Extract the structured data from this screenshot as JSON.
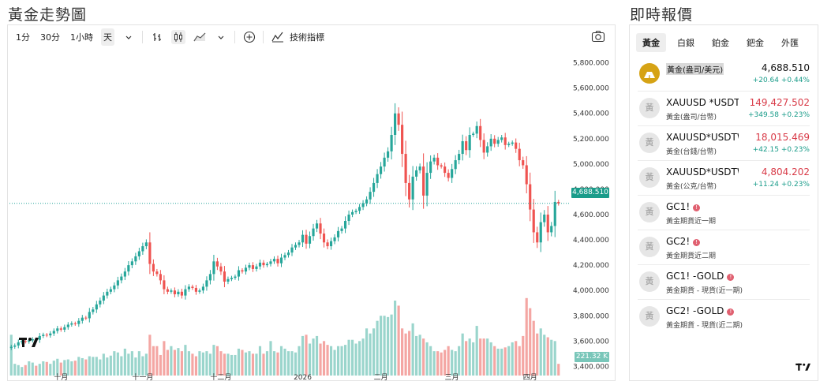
{
  "left_title": "黃金走勢圖",
  "right_title": "即時報價",
  "toolbar": {
    "interval_1m": "1分",
    "interval_30m": "30分",
    "interval_1h": "1小時",
    "interval_day": "天",
    "indicators_label": "技術指標"
  },
  "chart_data": {
    "type": "candlestick",
    "title": "",
    "xlabel": "",
    "ylabel": "",
    "ylim": [
      3340,
      5860
    ],
    "price_ticks": [
      "5,800.000",
      "5,600.000",
      "5,400.000",
      "5,200.000",
      "5,000.000",
      "4,800.000",
      "4,600.000",
      "4,400.000",
      "4,200.000",
      "4,000.000",
      "3,800.000",
      "3,600.000",
      "3,400.000"
    ],
    "price_tick_values": [
      5800,
      5600,
      5400,
      5200,
      5000,
      4800,
      4600,
      4400,
      4200,
      4000,
      3800,
      3600,
      3400
    ],
    "time_labels": [
      {
        "label": "十月",
        "index": 14
      },
      {
        "label": "十一月",
        "index": 37
      },
      {
        "label": "十二月",
        "index": 59
      },
      {
        "label": "2026",
        "index": 82
      },
      {
        "label": "二月",
        "index": 104
      },
      {
        "label": "三月",
        "index": 124
      },
      {
        "label": "四月",
        "index": 146
      }
    ],
    "last_price": 4688.51,
    "last_price_label": "4,688.510",
    "volume_label": "221.32 K",
    "close": [
      3555,
      3565,
      3590,
      3600,
      3595,
      3605,
      3615,
      3610,
      3640,
      3650,
      3645,
      3660,
      3680,
      3700,
      3690,
      3710,
      3730,
      3740,
      3735,
      3760,
      3785,
      3780,
      3830,
      3850,
      3890,
      3920,
      3960,
      3990,
      4010,
      4040,
      4080,
      4110,
      4150,
      4200,
      4230,
      4270,
      4310,
      4350,
      4380,
      4210,
      4150,
      4130,
      4080,
      4010,
      3990,
      4000,
      3970,
      3990,
      3960,
      4010,
      4030,
      4020,
      3990,
      4000,
      4030,
      4080,
      4130,
      4230,
      4190,
      4150,
      4070,
      4090,
      4100,
      4110,
      4160,
      4150,
      4180,
      4200,
      4170,
      4190,
      4220,
      4200,
      4210,
      4230,
      4250,
      4215,
      4260,
      4280,
      4300,
      4340,
      4360,
      4380,
      4440,
      4370,
      4430,
      4490,
      4530,
      4450,
      4380,
      4350,
      4390,
      4420,
      4470,
      4490,
      4550,
      4600,
      4620,
      4630,
      4660,
      4690,
      4720,
      4780,
      4850,
      4920,
      4980,
      5050,
      5100,
      5230,
      5400,
      5310,
      5080,
      4850,
      4720,
      4900,
      4950,
      4980,
      4750,
      4930,
      5020,
      5050,
      4990,
      4980,
      4930,
      4890,
      4960,
      5030,
      5080,
      5180,
      5110,
      5230,
      5240,
      5300,
      5190,
      5090,
      5140,
      5200,
      5160,
      5190,
      5210,
      5150,
      5160,
      5170,
      5120,
      5030,
      4990,
      4840,
      4640,
      4460,
      4380,
      4540,
      4600,
      4460,
      4510,
      4700,
      4688
    ],
    "volume": [
      3650,
      3420,
      3410,
      3395,
      3410,
      3440,
      3430,
      3405,
      3420,
      3440,
      3435,
      3420,
      3445,
      3460,
      3430,
      3450,
      3455,
      3440,
      3445,
      3475,
      3465,
      3455,
      3480,
      3475,
      3475,
      3455,
      3500,
      3470,
      3485,
      3520,
      3510,
      3480,
      3540,
      3500,
      3520,
      3470,
      3520,
      3480,
      3500,
      3650,
      3560,
      3560,
      3490,
      3600,
      3530,
      3560,
      3530,
      3545,
      3520,
      3570,
      3520,
      3500,
      3480,
      3520,
      3510,
      3520,
      3500,
      3570,
      3560,
      3520,
      3500,
      3500,
      3490,
      3490,
      3540,
      3530,
      3510,
      3520,
      3500,
      3500,
      3560,
      3500,
      3520,
      3600,
      3520,
      3510,
      3560,
      3540,
      3520,
      3520,
      3510,
      3560,
      3640,
      3650,
      3580,
      3620,
      3640,
      3580,
      3600,
      3570,
      3560,
      3530,
      3560,
      3560,
      3570,
      3610,
      3610,
      3580,
      3600,
      3620,
      3700,
      3660,
      3700,
      3760,
      3800,
      3800,
      3790,
      3810,
      3920,
      3880,
      3700,
      3660,
      3680,
      3740,
      3640,
      3650,
      3620,
      3590,
      3560,
      3520,
      3520,
      3510,
      3530,
      3560,
      3530,
      3520,
      3560,
      3660,
      3600,
      3620,
      3590,
      3720,
      3620,
      3620,
      3620,
      3590,
      3560,
      3540,
      3540,
      3550,
      3560,
      3590,
      3600,
      3560,
      3640,
      3940,
      3860,
      3760,
      3660,
      3700,
      3650,
      3630,
      3610,
      3600,
      3420
    ]
  },
  "quotes": {
    "tabs": [
      "黃金",
      "白銀",
      "鉑金",
      "鈀金",
      "外匯"
    ],
    "items": [
      {
        "avatar": "",
        "symbol": "黃金(盎司/美元)",
        "desc": "",
        "price": "4,688.510",
        "change": "+20.64  +0.44%",
        "gold": true,
        "red": false,
        "dot": false
      },
      {
        "avatar": "黃",
        "symbol": "XAUUSD *USDTWD",
        "desc": "黃金(盎司/台幣)",
        "price": "149,427.502",
        "change": "+349.58  +0.23%",
        "gold": false,
        "red": true,
        "dot": false
      },
      {
        "avatar": "黃",
        "symbol": "XAUUSD*USDTWD/",
        "desc": "黃金(台錢/台幣)",
        "price": "18,015.469",
        "change": "+42.15  +0.23%",
        "gold": false,
        "red": true,
        "dot": false
      },
      {
        "avatar": "黃",
        "symbol": "XAUUSD*USDTWD/",
        "desc": "黃金(公克/台幣)",
        "price": "4,804.202",
        "change": "+11.24  +0.23%",
        "gold": false,
        "red": true,
        "dot": false
      },
      {
        "avatar": "黃",
        "symbol": "GC1!",
        "desc": "黃金期貨近一期",
        "price": "",
        "change": "",
        "gold": false,
        "red": false,
        "dot": true
      },
      {
        "avatar": "黃",
        "symbol": "GC2!",
        "desc": "黃金期貨近二期",
        "price": "",
        "change": "",
        "gold": false,
        "red": false,
        "dot": true
      },
      {
        "avatar": "黃",
        "symbol": "GC1! -GOLD",
        "desc": "黃金期貨 - 現貨(近一期)",
        "price": "",
        "change": "",
        "gold": false,
        "red": false,
        "dot": true
      },
      {
        "avatar": "黃",
        "symbol": "GC2! -GOLD",
        "desc": "黃金期貨 - 現貨(近二期)",
        "price": "",
        "change": "",
        "gold": false,
        "red": false,
        "dot": true
      }
    ]
  },
  "colors": {
    "up": "#26a69a",
    "down": "#ef5350",
    "vol_up": "#9ad5cc",
    "vol_down": "#f4a6a3",
    "last_price_line": "#26a69a"
  },
  "icons": [
    "chevron-down-icon",
    "bar-style-icon",
    "candle-icon",
    "area-chart-icon",
    "add-indicator-icon",
    "indicators-icon",
    "camera-icon",
    "tradingview-logo-icon"
  ]
}
